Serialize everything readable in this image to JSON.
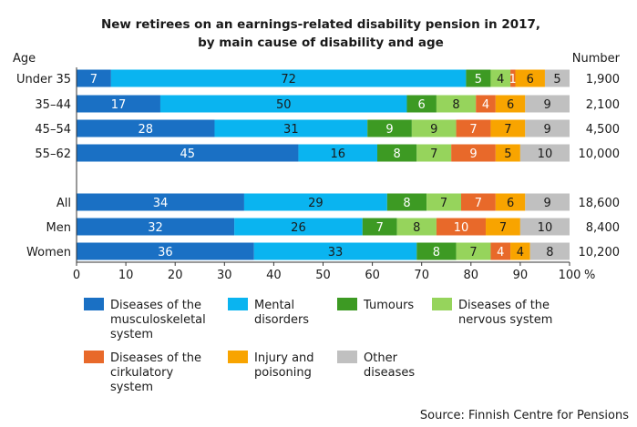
{
  "chart_data": {
    "type": "bar",
    "orientation": "horizontal",
    "stacked": true,
    "title": "New retirees on an earnings-related disability pension in 2017,",
    "subtitle": "by main cause of disability and age",
    "ylabel": "Age",
    "right_header": "Number",
    "x_unit_label": "%",
    "xlim": [
      0,
      100
    ],
    "x_ticks": [
      0,
      10,
      20,
      30,
      40,
      50,
      60,
      70,
      80,
      90,
      100
    ],
    "grid": false,
    "legend_position": "bottom",
    "source": "Source: Finnish Centre for Pensions",
    "categories": [
      "Under 35",
      "35–44",
      "45–54",
      "55–62",
      "All",
      "Men",
      "Women"
    ],
    "numbers": [
      "1,900",
      "2,100",
      "4,500",
      "10,000",
      "18,600",
      "8,400",
      "10,200"
    ],
    "series": [
      {
        "name": "Diseases of the musculoskeletal system",
        "legend_lines": [
          "Diseases of the",
          "musculoskeletal",
          "system"
        ],
        "color": "#1a70c4",
        "label_color": "#ffffff",
        "values": [
          7,
          17,
          28,
          45,
          34,
          32,
          36
        ],
        "labels": [
          "7",
          "17",
          "28",
          "45",
          "34",
          "32",
          "36"
        ]
      },
      {
        "name": "Mental disorders",
        "legend_lines": [
          "Mental",
          "disorders"
        ],
        "color": "#0ab4f0",
        "label_color": "#1a1a1a",
        "values": [
          72,
          50,
          31,
          16,
          29,
          26,
          33
        ],
        "labels": [
          "72",
          "50",
          "31",
          "16",
          "29",
          "26",
          "33"
        ]
      },
      {
        "name": "Tumours",
        "legend_lines": [
          "Tumours"
        ],
        "color": "#3d9a23",
        "label_color": "#ffffff",
        "values": [
          5,
          6,
          9,
          8,
          8,
          7,
          8
        ],
        "labels": [
          "5",
          "6",
          "9",
          "8",
          "8",
          "7",
          "8"
        ]
      },
      {
        "name": "Diseases of the nervous system",
        "legend_lines": [
          "Diseases of the",
          "nervous system"
        ],
        "color": "#96d45c",
        "label_color": "#1a1a1a",
        "values": [
          4,
          8,
          9,
          7,
          7,
          8,
          7
        ],
        "labels": [
          "4",
          "8",
          "9",
          "7",
          "7",
          "8",
          "7"
        ]
      },
      {
        "name": "Diseases of the cirkulatory system",
        "legend_lines": [
          "Diseases of the",
          "cirkulatory",
          "system"
        ],
        "color": "#e8692a",
        "label_color": "#ffffff",
        "values": [
          1,
          4,
          7,
          9,
          7,
          10,
          4
        ],
        "labels": [
          "1",
          "4",
          "7",
          "9",
          "7",
          "10",
          "4"
        ]
      },
      {
        "name": "Injury and poisoning",
        "legend_lines": [
          "Injury and",
          "poisoning"
        ],
        "color": "#f8a400",
        "label_color": "#1a1a1a",
        "values": [
          6,
          6,
          7,
          5,
          6,
          7,
          4
        ],
        "labels": [
          "6",
          "6",
          "7",
          "5",
          "6",
          "7",
          "4"
        ]
      },
      {
        "name": "Other diseases",
        "legend_lines": [
          "Other",
          "diseases"
        ],
        "color": "#c0c0c0",
        "label_color": "#1a1a1a",
        "values": [
          5,
          9,
          9,
          10,
          9,
          10,
          8
        ],
        "labels": [
          "5",
          "9",
          "9",
          "10",
          "9",
          "10",
          "8"
        ]
      }
    ]
  }
}
